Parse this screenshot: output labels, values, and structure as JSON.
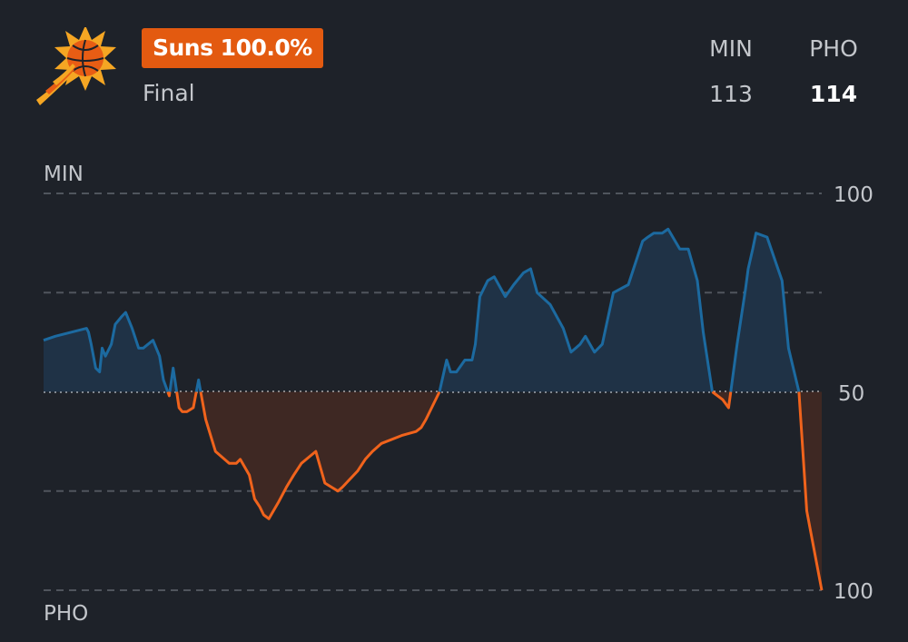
{
  "header": {
    "win_probability_label": "Suns 100.0%",
    "status": "Final",
    "away": {
      "abbr": "MIN",
      "score": "113"
    },
    "home": {
      "abbr": "PHO",
      "score": "114"
    }
  },
  "colors": {
    "background": "#1e2229",
    "away_line": "#1c6aa0",
    "away_fill": "#1f3246",
    "home_line": "#f0631c",
    "home_fill": "#3e2823",
    "badge": "#e35a10"
  },
  "logo": {
    "icon": "phoenix-suns-logo"
  },
  "chart_data": {
    "type": "area",
    "description_units": "value = MIN win probability (%); values below 50 shown as PHO advantage",
    "top_label": "MIN",
    "bottom_label": "PHO",
    "y_tick_labels": [
      "100",
      "50",
      "100"
    ],
    "ylim": [
      0,
      100
    ],
    "grid": true,
    "x": [
      0,
      1.8,
      4.2,
      6.6,
      6.9,
      7.3,
      8.0,
      8.6,
      9.0,
      9.5,
      10.4,
      11.0,
      12.0,
      12.6,
      13.6,
      14.6,
      15.3,
      16.8,
      17.8,
      18.4,
      19.3,
      19.9,
      20.8,
      21.3,
      22.0,
      23.0,
      23.8,
      24.9,
      26.4,
      28.5,
      29.6,
      30.2,
      31.6,
      32.4,
      33.2,
      33.8,
      34.6,
      36.0,
      37.3,
      38.4,
      39.6,
      41.8,
      43.2,
      45.2,
      45.9,
      48.2,
      49.4,
      50.5,
      51.9,
      55.0,
      57.2,
      58.0,
      58.7,
      60.8,
      61.9,
      62.5,
      63.4,
      64.7,
      65.8,
      66.3,
      67.0,
      68.2,
      69.2,
      70.9,
      72.2,
      73.7,
      74.8,
      75.8,
      77.8,
      79.8,
      81.0,
      82.4,
      83.2,
      84.6,
      85.8,
      87.5,
      89.8,
      92.0,
      92.8,
      93.7,
      95.0,
      95.9,
      97.7,
      98.5,
      99.0,
      100.4,
      101.3,
      102.7,
      104.3,
      105.2,
      106.5,
      107.8,
      108.2,
      108.9,
      109.4,
      111.1,
      113.4,
      114.4,
      116.0,
      117.2,
      119.5
    ],
    "values": [
      63,
      64,
      65,
      66,
      65,
      62,
      56,
      55,
      61,
      59,
      62,
      67,
      69,
      70,
      66,
      61,
      61,
      63,
      59,
      53,
      49,
      56,
      46,
      45,
      45,
      46,
      53,
      43,
      35,
      32,
      32,
      33,
      29,
      23,
      21,
      19,
      18,
      22,
      26,
      29,
      32,
      35,
      27,
      25,
      26,
      30,
      33,
      35,
      37,
      39,
      40,
      41,
      43,
      50,
      58,
      55,
      55,
      58,
      58,
      62,
      74,
      78,
      79,
      74,
      77,
      80,
      81,
      75,
      72,
      66,
      60,
      62,
      64,
      60,
      62,
      75,
      77,
      88,
      89,
      90,
      90,
      91,
      86,
      86,
      86,
      78,
      65,
      50,
      48,
      46,
      62,
      76,
      81,
      86,
      90,
      89,
      78,
      61,
      50,
      20,
      0
    ]
  }
}
